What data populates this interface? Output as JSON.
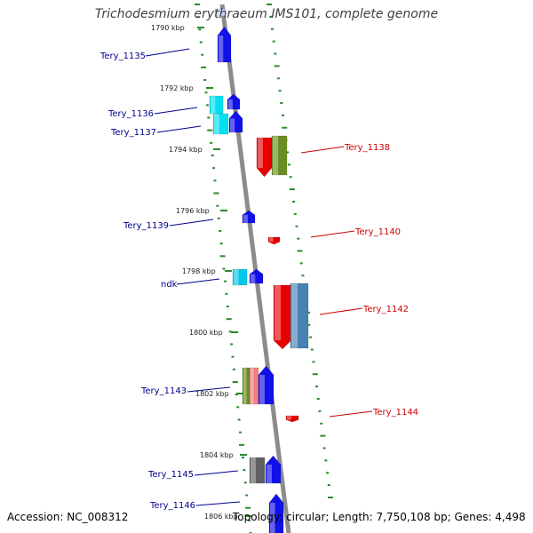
{
  "title": "Trichodesmium erythraeum IMS101, complete genome",
  "footer": {
    "accession": "Accession: NC_008312",
    "topology": "Topology: circular; Length: 7,750,108 bp; Genes: 4,498"
  },
  "colors": {
    "backbone": "#8c8c8c",
    "ticks": "#2a8a2a",
    "left_labels": "#00008b",
    "right_labels": "#cc0000"
  },
  "kbp_markers": [
    "1790 kbp",
    "1792 kbp",
    "1794 kbp",
    "1796 kbp",
    "1798 kbp",
    "1800 kbp",
    "1802 kbp",
    "1804 kbp",
    "1806 kbp"
  ],
  "genes": [
    {
      "label": "Tery_1135",
      "side": "left",
      "color": "#1010e8"
    },
    {
      "label": "Tery_1136",
      "side": "left",
      "color": "#00c8d8"
    },
    {
      "label": "Tery_1137",
      "side": "left",
      "color": "#00c8d8"
    },
    {
      "label": "Tery_1138",
      "side": "right",
      "color": "#e80000"
    },
    {
      "label": "Tery_1139",
      "side": "left",
      "color": "#1010e8"
    },
    {
      "label": "Tery_1140",
      "side": "right",
      "color": "#e80000"
    },
    {
      "label": "ndk",
      "side": "left",
      "color": "#00b0e0"
    },
    {
      "label": "Tery_1142",
      "side": "right",
      "color": "#e80000"
    },
    {
      "label": "Tery_1143",
      "side": "left",
      "color": "#1010e8"
    },
    {
      "label": "Tery_1144",
      "side": "right",
      "color": "#e80000"
    },
    {
      "label": "Tery_1145",
      "side": "left",
      "color": "#1010e8"
    },
    {
      "label": "Tery_1146",
      "side": "left",
      "color": "#1010e8"
    }
  ]
}
